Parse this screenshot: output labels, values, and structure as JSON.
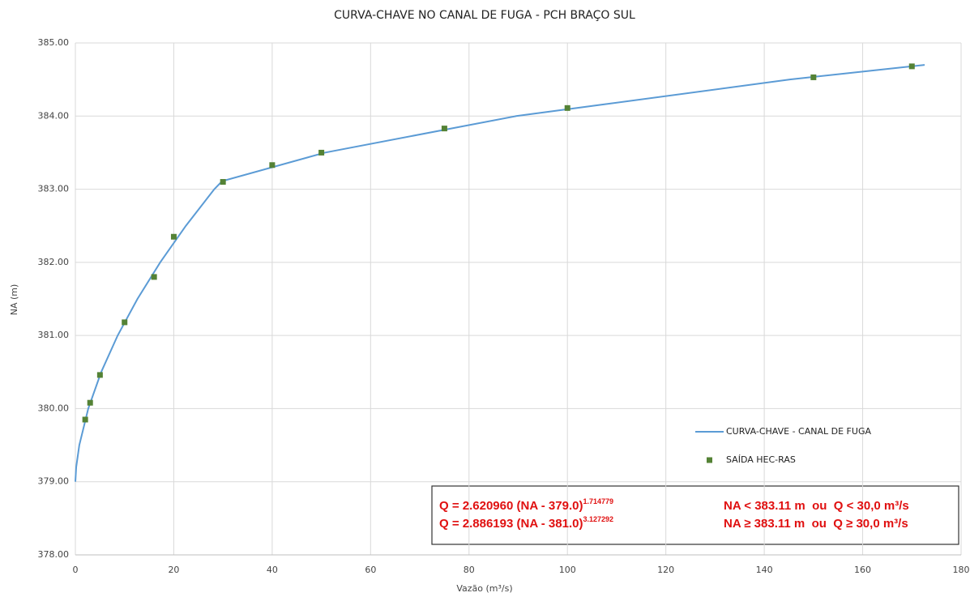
{
  "chart_data": {
    "type": "line",
    "title": "CURVA-CHAVE NO CANAL DE FUGA - PCH BRAÇO SUL",
    "x_label": "Vazão (m³/s)",
    "y_label": "NA (m)",
    "xlim": [
      0,
      180
    ],
    "xticks": [
      0,
      20,
      40,
      60,
      80,
      100,
      120,
      140,
      160,
      180
    ],
    "ylim": [
      378,
      385
    ],
    "yticks": [
      {
        "value": 378,
        "label": "378.00"
      },
      {
        "value": 379,
        "label": "379.00"
      },
      {
        "value": 380,
        "label": "380.00"
      },
      {
        "value": 381,
        "label": "381.00"
      },
      {
        "value": 382,
        "label": "382.00"
      },
      {
        "value": 383,
        "label": "383.00"
      },
      {
        "value": 384,
        "label": "384.00"
      },
      {
        "value": 385,
        "label": "385.00"
      }
    ],
    "grid": true,
    "legend": "right",
    "series": [
      {
        "name": "CURVA-CHAVE - CANAL DE FUGA",
        "color": "#5b9bd5",
        "kind": "line",
        "x": [
          0,
          0.17,
          0.8,
          2.62,
          5.25,
          8.6,
          12.62,
          17.25,
          22.46,
          28.24,
          29.82,
          50.7,
          89.6,
          145.2,
          172.6
        ],
        "values": [
          379,
          379.2,
          379.5,
          380,
          380.5,
          381,
          381.5,
          382,
          382.5,
          383,
          383.11,
          383.5,
          384,
          384.5,
          384.7
        ]
      },
      {
        "name": "SAÍDA HEC-RAS",
        "color": "#548235",
        "kind": "scatter",
        "x": [
          2,
          3,
          5,
          10,
          16,
          20,
          30,
          40,
          50,
          75,
          100,
          150,
          170
        ],
        "values": [
          379.85,
          380.08,
          380.46,
          381.18,
          381.8,
          382.35,
          383.1,
          383.33,
          383.5,
          383.83,
          384.11,
          384.53,
          384.68
        ]
      }
    ],
    "annotations": [
      {
        "text": "Q = 2.620960 (NA - 379.0)",
        "exponent": "1.714779",
        "condition": "NA < 383.11 m  ou  Q < 30,0 m³/s"
      },
      {
        "text": "Q = 2.886193 (NA - 381.0)",
        "exponent": "3.127292",
        "condition": "NA ≥ 383.11 m  ou  Q ≥ 30,0 m³/s"
      }
    ]
  }
}
